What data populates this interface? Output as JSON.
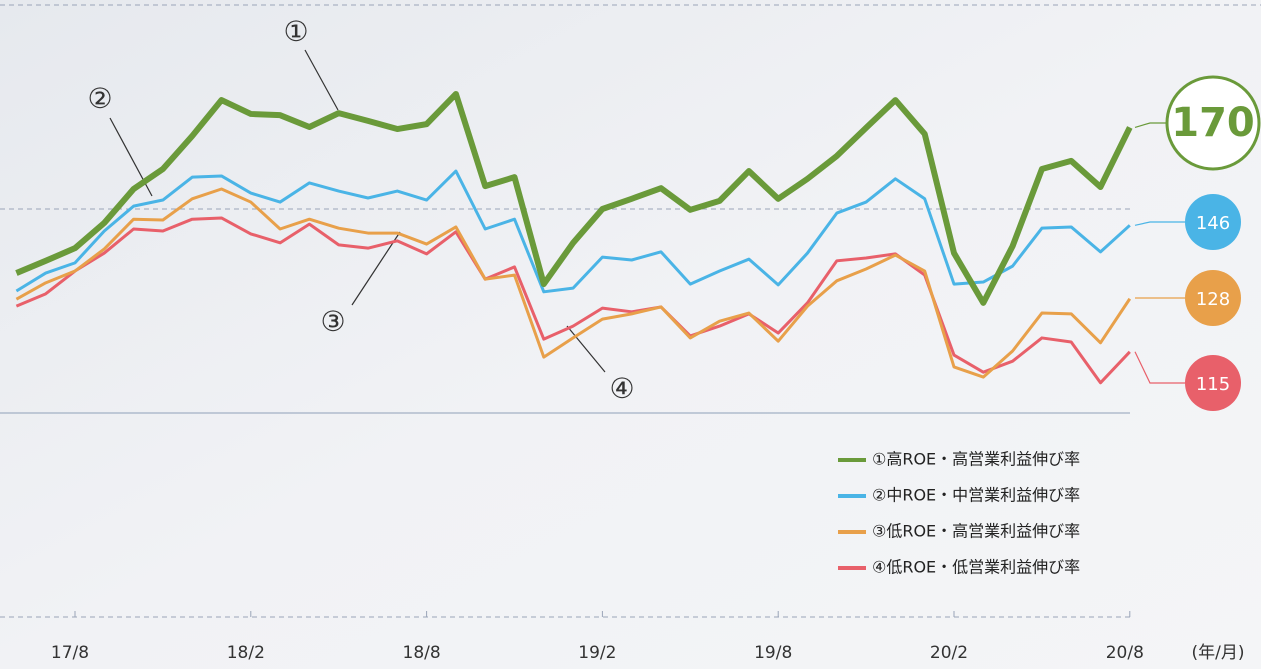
{
  "chart_data": {
    "type": "line",
    "x_label": "(年/月)",
    "categories": [
      null,
      null,
      "17/8",
      null,
      null,
      null,
      null,
      null,
      "18/2",
      null,
      null,
      null,
      null,
      null,
      "18/8",
      null,
      null,
      null,
      null,
      null,
      "19/2",
      null,
      null,
      null,
      null,
      null,
      "19/8",
      null,
      null,
      null,
      null,
      null,
      "20/2",
      null,
      null,
      null,
      null,
      null,
      "20/8"
    ],
    "annotations": [
      "①",
      "②",
      "③",
      "④"
    ],
    "ylim": [
      50,
      200
    ],
    "yticks": [
      50,
      100,
      150,
      200
    ],
    "grid": true,
    "legend": "lower right",
    "series": [
      {
        "name": "①高ROE・高営業利益伸び率",
        "color": "#6a9a3a",
        "values": [
          134.3,
          137.3,
          140.4,
          146.6,
          154.9,
          159.8,
          167.9,
          176.7,
          173.3,
          173.0,
          170.1,
          173.5,
          171.6,
          169.6,
          170.8,
          178.2,
          155.6,
          157.8,
          131.6,
          141.7,
          150.0,
          152.5,
          155.1,
          149.8,
          152.0,
          159.3,
          152.5,
          157.4,
          163.0,
          169.9,
          176.7,
          168.4,
          139.2,
          127.0,
          140.9,
          159.8,
          161.8,
          155.4,
          170
        ]
      },
      {
        "name": "②中ROE・中営業利益伸び率",
        "color": "#4ab4e6",
        "values": [
          129.9,
          134.3,
          136.8,
          144.6,
          150.7,
          152.2,
          157.8,
          158.1,
          153.9,
          151.7,
          156.4,
          154.4,
          152.7,
          154.4,
          152.2,
          159.3,
          145.1,
          147.5,
          129.7,
          130.6,
          138.2,
          137.5,
          139.5,
          131.6,
          134.8,
          137.7,
          131.4,
          139.2,
          149.0,
          151.7,
          157.4,
          152.5,
          131.6,
          132.1,
          136.0,
          145.3,
          145.6,
          139.5,
          146
        ]
      },
      {
        "name": "③低ROE・高営業利益伸び率",
        "color": "#e8a04a",
        "values": [
          127.9,
          131.9,
          134.8,
          140.2,
          147.5,
          147.3,
          152.5,
          154.9,
          151.7,
          145.1,
          147.5,
          145.3,
          144.1,
          144.1,
          141.4,
          145.6,
          132.8,
          133.8,
          113.7,
          118.4,
          123.0,
          124.3,
          126.0,
          118.4,
          122.5,
          124.5,
          117.6,
          126.2,
          132.4,
          135.3,
          138.7,
          134.8,
          111.3,
          108.8,
          115.2,
          124.5,
          124.3,
          117.2,
          128
        ]
      },
      {
        "name": "④低ROE・低営業利益伸び率",
        "color": "#e8606a",
        "values": [
          126.2,
          129.2,
          134.8,
          139.2,
          145.1,
          144.6,
          147.5,
          147.8,
          143.9,
          141.7,
          146.3,
          141.2,
          140.4,
          142.2,
          139.0,
          144.4,
          132.8,
          135.8,
          118.1,
          121.3,
          125.7,
          124.8,
          126.0,
          118.9,
          121.3,
          124.3,
          119.6,
          127.0,
          137.3,
          138.0,
          139.0,
          133.8,
          114.2,
          110.0,
          112.7,
          118.4,
          117.4,
          107.4,
          115
        ]
      }
    ]
  }
}
